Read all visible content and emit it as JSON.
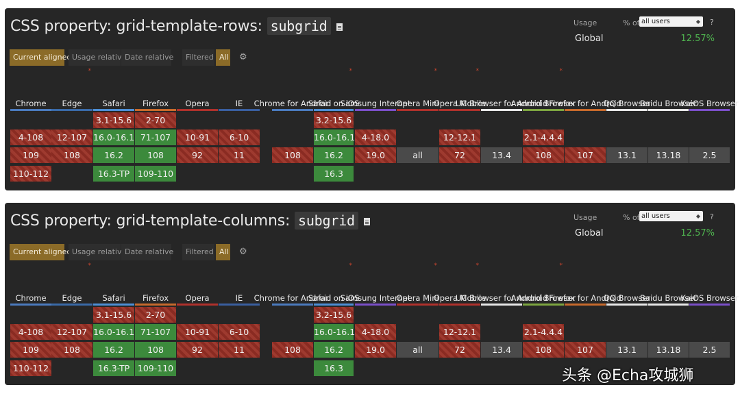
{
  "panels": [
    {
      "title_prefix": "CSS property: grid-template-rows: ",
      "title_code": "subgrid",
      "usage_label": "Usage",
      "pct_of": "% of",
      "user_select": "all users",
      "help": "?",
      "global_label": "Global",
      "global_value": "12.57%"
    },
    {
      "title_prefix": "CSS property: grid-template-columns: ",
      "title_code": "subgrid",
      "usage_label": "Usage",
      "pct_of": "% of",
      "user_select": "all users",
      "help": "?",
      "global_label": "Global",
      "global_value": "12.57%"
    }
  ],
  "toolbar": {
    "current_aligned": "Current aligned",
    "usage_relative": "Usage relative",
    "date_relative": "Date relative",
    "filtered": "Filtered",
    "all": "All",
    "settings_icon": "gear-icon"
  },
  "browsers": [
    {
      "name": "Chrome",
      "color": "#4b7bbf",
      "star": false,
      "cells": [
        null,
        {
          "t": "4-108",
          "s": "n"
        },
        {
          "t": "109",
          "s": "n"
        },
        {
          "t": "110-112",
          "s": "n"
        }
      ]
    },
    {
      "name": "Edge",
      "color": "#3a6aa8",
      "star": true,
      "cells": [
        null,
        {
          "t": "12-107",
          "s": "n"
        },
        {
          "t": "108",
          "s": "n"
        },
        null
      ]
    },
    {
      "name": "Safari",
      "color": "#4d8fd6",
      "star": false,
      "cells": [
        {
          "t": "3.1-15.6",
          "s": "n"
        },
        {
          "t": "16.0-16.1",
          "s": "y"
        },
        {
          "t": "16.2",
          "s": "y"
        },
        {
          "t": "16.3-TP",
          "s": "y"
        }
      ]
    },
    {
      "name": "Firefox",
      "color": "#c86a2c",
      "star": false,
      "cells": [
        {
          "t": "2-70",
          "s": "n"
        },
        {
          "t": "71-107",
          "s": "y"
        },
        {
          "t": "108",
          "s": "y"
        },
        {
          "t": "109-110",
          "s": "y"
        }
      ]
    },
    {
      "name": "Opera",
      "color": "#b0312c",
      "star": false,
      "cells": [
        null,
        {
          "t": "10-91",
          "s": "n"
        },
        {
          "t": "92",
          "s": "n"
        },
        null
      ]
    },
    {
      "name": "IE",
      "color": "#3a5fa0",
      "star": false,
      "cells": [
        null,
        {
          "t": "6-10",
          "s": "n"
        },
        {
          "t": "11",
          "s": "n"
        },
        null
      ]
    },
    {
      "name": "Chrome for Android",
      "color": "#4b7bbf",
      "star": false,
      "cells": [
        null,
        null,
        {
          "t": "108",
          "s": "n"
        },
        null
      ]
    },
    {
      "name": "Safari on iOS",
      "color": "#4d8fd6",
      "star": true,
      "cells": [
        {
          "t": "3.2-15.6",
          "s": "n"
        },
        {
          "t": "16.0-16.1",
          "s": "y"
        },
        {
          "t": "16.2",
          "s": "y"
        },
        {
          "t": "16.3",
          "s": "y"
        }
      ]
    },
    {
      "name": "Samsung Internet",
      "color": "#7b4fc9",
      "star": false,
      "cells": [
        null,
        {
          "t": "4-18.0",
          "s": "n"
        },
        {
          "t": "19.0",
          "s": "n"
        },
        null
      ]
    },
    {
      "name": "Opera Mini",
      "color": "#b0312c",
      "star": true,
      "cells": [
        null,
        null,
        {
          "t": "all",
          "s": "u"
        },
        null
      ]
    },
    {
      "name": "Opera Mobile",
      "color": "#b0312c",
      "star": true,
      "cells": [
        null,
        {
          "t": "12-12.1",
          "s": "n"
        },
        {
          "t": "72",
          "s": "n"
        },
        null
      ]
    },
    {
      "name": "UC Browser for Android",
      "color": "#e8e8e8",
      "star": false,
      "cells": [
        null,
        null,
        {
          "t": "13.4",
          "s": "u"
        },
        null
      ]
    },
    {
      "name": "Android Browser",
      "color": "#7da640",
      "star": true,
      "cells": [
        null,
        {
          "t": "2.1-4.4.4",
          "s": "n"
        },
        {
          "t": "108",
          "s": "n"
        },
        null
      ]
    },
    {
      "name": "Firefox for Android",
      "color": "#c86a2c",
      "star": false,
      "cells": [
        null,
        null,
        {
          "t": "107",
          "s": "n"
        },
        null
      ]
    },
    {
      "name": "QQ Browser",
      "color": "#e8e8e8",
      "star": false,
      "cells": [
        null,
        null,
        {
          "t": "13.1",
          "s": "u"
        },
        null
      ]
    },
    {
      "name": "Baidu Browser",
      "color": "#e8e8e8",
      "star": false,
      "cells": [
        null,
        null,
        {
          "t": "13.18",
          "s": "u"
        },
        null
      ]
    },
    {
      "name": "KaiOS Browser",
      "color": "#7b4fc9",
      "star": false,
      "cells": [
        null,
        null,
        {
          "t": "2.5",
          "s": "u"
        },
        null
      ]
    }
  ],
  "watermark": "头条 @Echa攻城狮"
}
